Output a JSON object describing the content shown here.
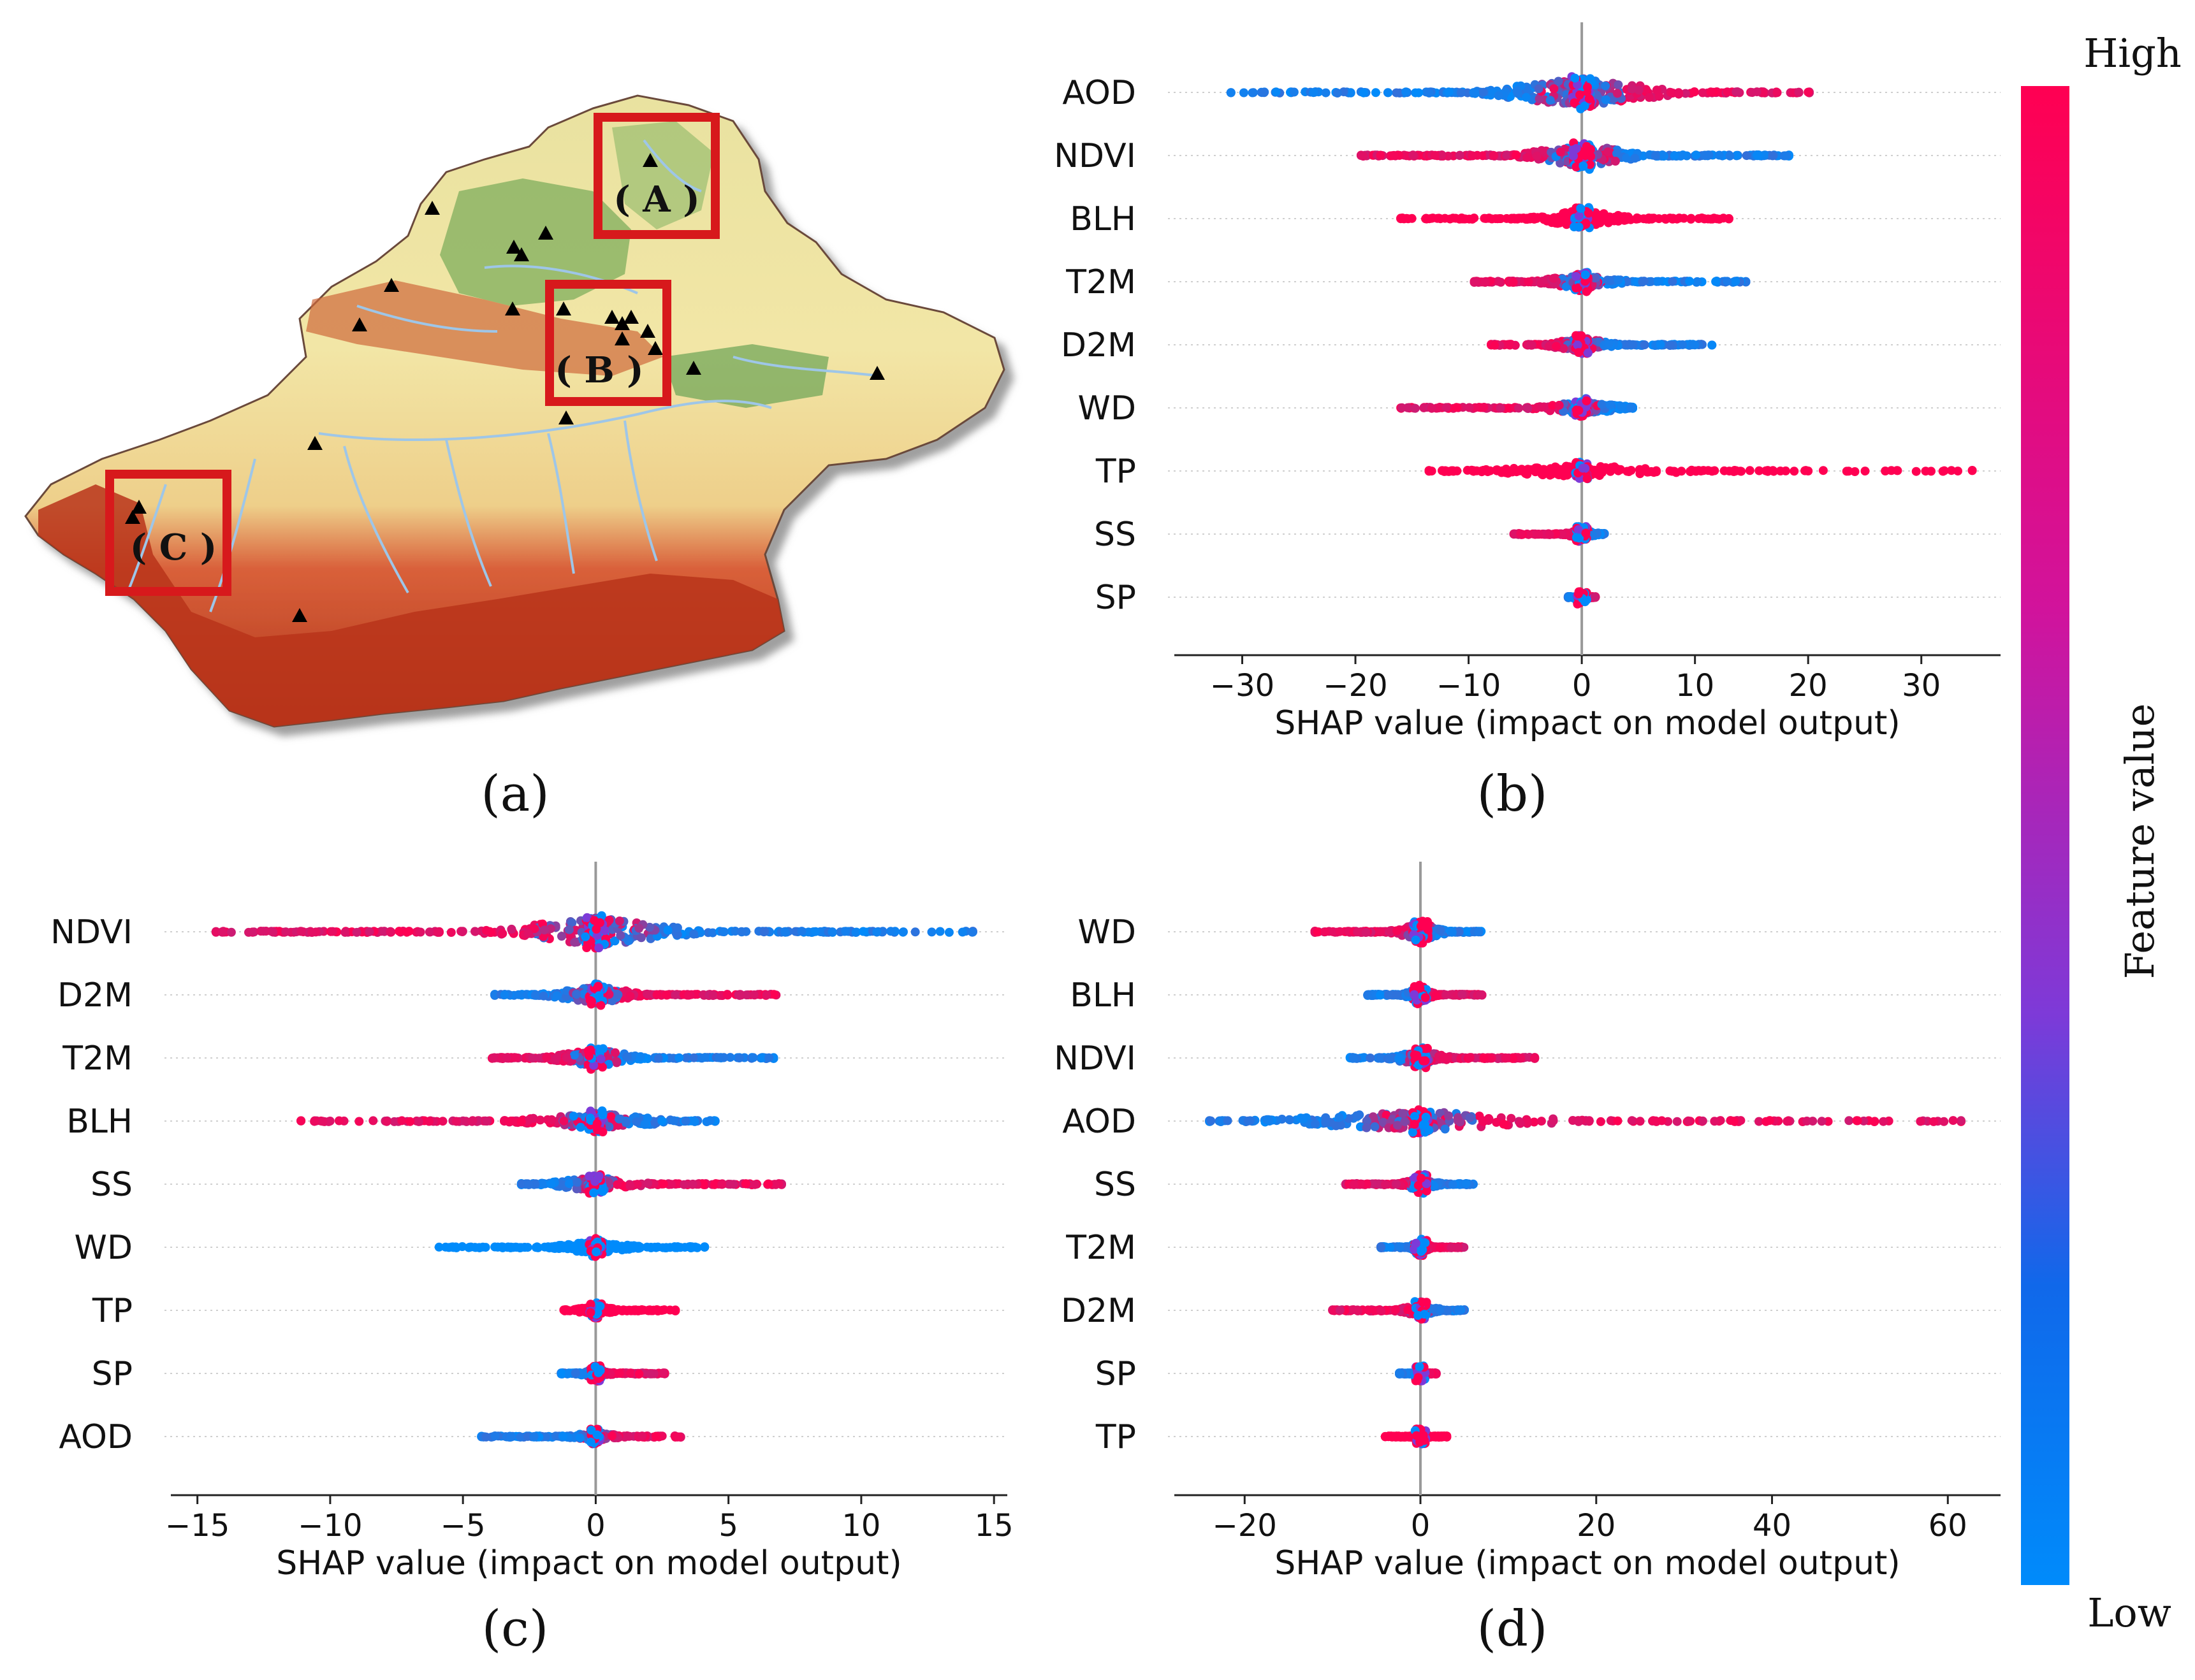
{
  "panels": {
    "a": "(a)",
    "b": "(b)",
    "c": "(c)",
    "d": "(d)"
  },
  "map": {
    "boxes": [
      "( A )",
      "( B )",
      "( C )"
    ],
    "colors": {
      "box": "#d7191c",
      "station": "#000000",
      "river": "#9ec6e8",
      "desert": "#f0e3a0",
      "oasis": "#6faa5a",
      "mountain": "#c0391b"
    }
  },
  "colorbar": {
    "high_label": "High",
    "low_label": "Low",
    "title": "Feature value",
    "colors": {
      "high": "#ff0052",
      "mid": "#7d3ad8",
      "low": "#008bfb"
    }
  },
  "chart_data": [
    {
      "id": "b",
      "type": "scatter",
      "subtype": "shap-beeswarm",
      "xlabel": "SHAP value (impact on model output)",
      "xlim": [
        -36,
        37
      ],
      "xticks": [
        -30,
        -20,
        -10,
        0,
        10,
        20,
        30
      ],
      "xtick_labels": [
        "−30",
        "−20",
        "−10",
        "0",
        "10",
        "20",
        "30"
      ],
      "features": [
        {
          "name": "AOD",
          "range": [
            -31,
            20.1
          ],
          "left_color": "low",
          "right_color": "high",
          "density": 1.0
        },
        {
          "name": "NDVI",
          "range": [
            -19.5,
            18.3
          ],
          "left_color": "high",
          "right_color": "low",
          "density": 0.8
        },
        {
          "name": "BLH",
          "range": [
            -16,
            13
          ],
          "left_color": "high",
          "right_color": "high",
          "density": 0.6
        },
        {
          "name": "T2M",
          "range": [
            -9.5,
            14.5
          ],
          "left_color": "high",
          "right_color": "low",
          "density": 0.5
        },
        {
          "name": "D2M",
          "range": [
            -8,
            11.5
          ],
          "left_color": "high",
          "right_color": "low",
          "density": 0.5
        },
        {
          "name": "WD",
          "range": [
            -16,
            4.5
          ],
          "left_color": "high",
          "right_color": "low",
          "density": 0.45
        },
        {
          "name": "TP",
          "range": [
            -13.5,
            34.5
          ],
          "left_color": "high",
          "right_color": "high",
          "density": 0.4
        },
        {
          "name": "SS",
          "range": [
            -6,
            2
          ],
          "left_color": "high",
          "right_color": "low",
          "density": 0.3
        },
        {
          "name": "SP",
          "range": [
            -1.2,
            1.2
          ],
          "left_color": "low",
          "right_color": "high",
          "density": 0.25
        }
      ]
    },
    {
      "id": "c",
      "type": "scatter",
      "subtype": "shap-beeswarm",
      "xlabel": "SHAP value (impact on model output)",
      "xlim": [
        -16,
        15.5
      ],
      "xticks": [
        -15,
        -10,
        -5,
        0,
        5,
        10,
        15
      ],
      "xtick_labels": [
        "−15",
        "−10",
        "−5",
        "0",
        "5",
        "10",
        "15"
      ],
      "features": [
        {
          "name": "NDVI",
          "range": [
            -14.3,
            14.2
          ],
          "left_color": "high",
          "right_color": "low",
          "density": 1.0
        },
        {
          "name": "D2M",
          "range": [
            -3.8,
            6.8
          ],
          "left_color": "low",
          "right_color": "high",
          "density": 0.6
        },
        {
          "name": "T2M",
          "range": [
            -3.9,
            6.7
          ],
          "left_color": "high",
          "right_color": "low",
          "density": 0.6
        },
        {
          "name": "BLH",
          "range": [
            -11.1,
            4.5
          ],
          "left_color": "high",
          "right_color": "low",
          "density": 0.55
        },
        {
          "name": "SS",
          "range": [
            -2.8,
            7
          ],
          "left_color": "low",
          "right_color": "high",
          "density": 0.5
        },
        {
          "name": "WD",
          "range": [
            -5.9,
            4.1
          ],
          "left_color": "low",
          "right_color": "low",
          "density": 0.45
        },
        {
          "name": "TP",
          "range": [
            -1.2,
            3
          ],
          "left_color": "high",
          "right_color": "high",
          "density": 0.35
        },
        {
          "name": "SP",
          "range": [
            -1.3,
            2.6
          ],
          "left_color": "low",
          "right_color": "high",
          "density": 0.3
        },
        {
          "name": "AOD",
          "range": [
            -4.3,
            3.2
          ],
          "left_color": "low",
          "right_color": "high",
          "density": 0.3
        }
      ]
    },
    {
      "id": "d",
      "type": "scatter",
      "subtype": "shap-beeswarm",
      "xlabel": "SHAP value (impact on model output)",
      "xlim": [
        -28,
        66
      ],
      "xticks": [
        -20,
        0,
        20,
        40,
        60
      ],
      "xtick_labels": [
        "−20",
        "0",
        "20",
        "40",
        "60"
      ],
      "features": [
        {
          "name": "WD",
          "range": [
            -12,
            7
          ],
          "left_color": "high",
          "right_color": "low",
          "density": 0.6
        },
        {
          "name": "BLH",
          "range": [
            -6,
            7
          ],
          "left_color": "low",
          "right_color": "high",
          "density": 0.5
        },
        {
          "name": "NDVI",
          "range": [
            -8,
            13
          ],
          "left_color": "low",
          "right_color": "high",
          "density": 0.5
        },
        {
          "name": "AOD",
          "range": [
            -24,
            61.5
          ],
          "left_color": "low",
          "right_color": "high",
          "density": 0.7
        },
        {
          "name": "SS",
          "range": [
            -8.5,
            6
          ],
          "left_color": "high",
          "right_color": "low",
          "density": 0.45
        },
        {
          "name": "T2M",
          "range": [
            -4.5,
            5
          ],
          "left_color": "low",
          "right_color": "high",
          "density": 0.4
        },
        {
          "name": "D2M",
          "range": [
            -10,
            5
          ],
          "left_color": "high",
          "right_color": "low",
          "density": 0.4
        },
        {
          "name": "SP",
          "range": [
            -2.4,
            1.8
          ],
          "left_color": "low",
          "right_color": "high",
          "density": 0.3
        },
        {
          "name": "TP",
          "range": [
            -4,
            3
          ],
          "left_color": "high",
          "right_color": "high",
          "density": 0.3
        }
      ]
    }
  ]
}
